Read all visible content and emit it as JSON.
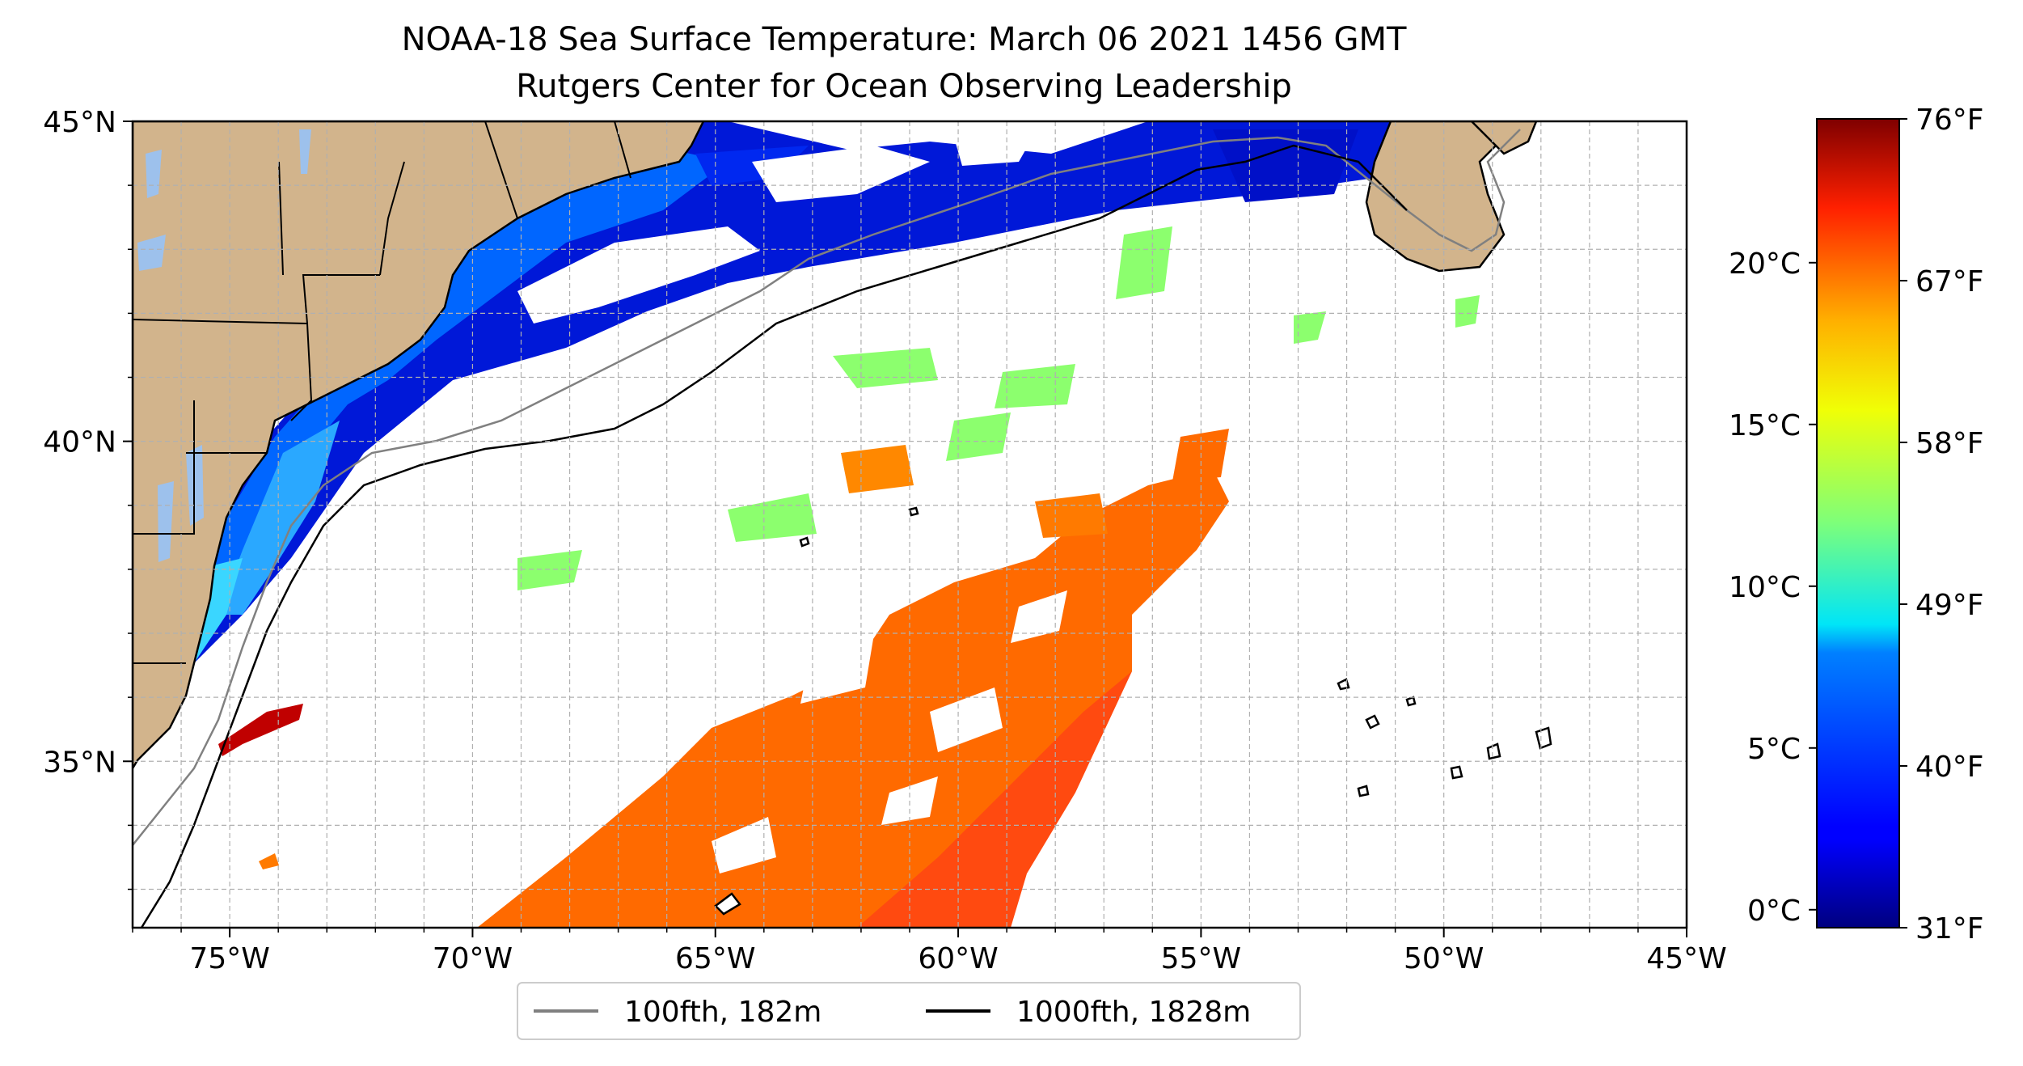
{
  "title": {
    "line1": "NOAA-18 Sea Surface Temperature: March 06 2021 1456 GMT",
    "line2": "Rutgers Center for Ocean Observing Leadership"
  },
  "map": {
    "lon_range": [
      -77,
      -45
    ],
    "lat_range": [
      32.4,
      45
    ],
    "lon_ticks": [
      {
        "value": -75,
        "label": "75°W"
      },
      {
        "value": -70,
        "label": "70°W"
      },
      {
        "value": -65,
        "label": "65°W"
      },
      {
        "value": -60,
        "label": "60°W"
      },
      {
        "value": -55,
        "label": "55°W"
      },
      {
        "value": -50,
        "label": "50°W"
      },
      {
        "value": -45,
        "label": "45°W"
      }
    ],
    "lat_ticks": [
      {
        "value": 45,
        "label": "45°N"
      },
      {
        "value": 40,
        "label": "40°N"
      },
      {
        "value": 35,
        "label": "35°N"
      }
    ],
    "gridlines": "dashed, 1° spacing",
    "land_color": "#d2b48c",
    "ocean_color": "#ffffff",
    "lake_color": "#9dc1ec"
  },
  "legend": {
    "placement": "bottom-center",
    "items": [
      {
        "label": "100fth, 182m",
        "color": "#808080"
      },
      {
        "label": "1000fth, 1828m",
        "color": "#000000"
      }
    ]
  },
  "colorbar": {
    "colormap": "jet",
    "celsius_ticks": [
      {
        "value": 0,
        "label": "0°C"
      },
      {
        "value": 5,
        "label": "5°C"
      },
      {
        "value": 10,
        "label": "10°C"
      },
      {
        "value": 15,
        "label": "15°C"
      },
      {
        "value": 20,
        "label": "20°C"
      }
    ],
    "fahrenheit_ticks": [
      {
        "value": 31,
        "label": "31°F"
      },
      {
        "value": 40,
        "label": "40°F"
      },
      {
        "value": 49,
        "label": "49°F"
      },
      {
        "value": 58,
        "label": "58°F"
      },
      {
        "value": 67,
        "label": "67°F"
      },
      {
        "value": 76,
        "label": "76°F"
      }
    ],
    "range_f": [
      31,
      76
    ]
  }
}
